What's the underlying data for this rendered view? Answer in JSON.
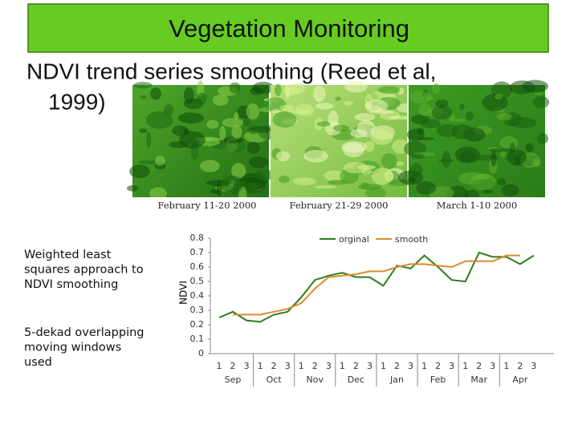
{
  "header": {
    "title": "Vegetation Monitoring",
    "subtitle_line1": "NDVI trend series smoothing (Reed et al,",
    "subtitle_line2": "1999)"
  },
  "images": [
    {
      "caption": "February 11-20 2000"
    },
    {
      "caption": "February 21-29 2000"
    },
    {
      "caption": "March 1-10 2000"
    }
  ],
  "notes": [
    [
      "Weighted least",
      "squares approach to",
      "NDVI smoothing"
    ],
    [
      "5-dekad overlapping",
      "moving windows",
      "used"
    ]
  ],
  "chart_data": {
    "type": "line",
    "y_label": "NDVI",
    "categories": [
      "1",
      "2",
      "3",
      "1",
      "2",
      "3",
      "1",
      "2",
      "3",
      "1",
      "2",
      "3",
      "1",
      "2",
      "3",
      "1",
      "2",
      "3",
      "1",
      "2",
      "3",
      "1",
      "2",
      "3"
    ],
    "months": [
      "Sep",
      "Oct",
      "Nov",
      "Dec",
      "Jan",
      "Feb",
      "Mar",
      "Apr"
    ],
    "series": [
      {
        "name": "orginal",
        "color": "#2e7d1e",
        "values": [
          0.25,
          0.29,
          0.23,
          0.22,
          0.27,
          0.29,
          0.39,
          0.51,
          0.54,
          0.56,
          0.53,
          0.53,
          0.47,
          0.61,
          0.59,
          0.68,
          0.6,
          0.51,
          0.5,
          0.7,
          0.67,
          0.67,
          0.62,
          0.68
        ]
      },
      {
        "name": "smooth",
        "color": "#e08a2c",
        "values": [
          null,
          0.27,
          0.27,
          0.27,
          0.29,
          0.31,
          0.35,
          0.45,
          0.53,
          0.54,
          0.55,
          0.57,
          0.57,
          0.6,
          0.62,
          0.62,
          0.61,
          0.6,
          0.64,
          0.64,
          0.64,
          0.68,
          0.68,
          null
        ]
      }
    ],
    "ylim": [
      0,
      0.8
    ],
    "yticks": [
      0,
      0.1,
      0.2,
      0.3,
      0.4,
      0.5,
      0.6,
      0.7,
      0.8
    ],
    "grid": false,
    "legend": "top"
  }
}
